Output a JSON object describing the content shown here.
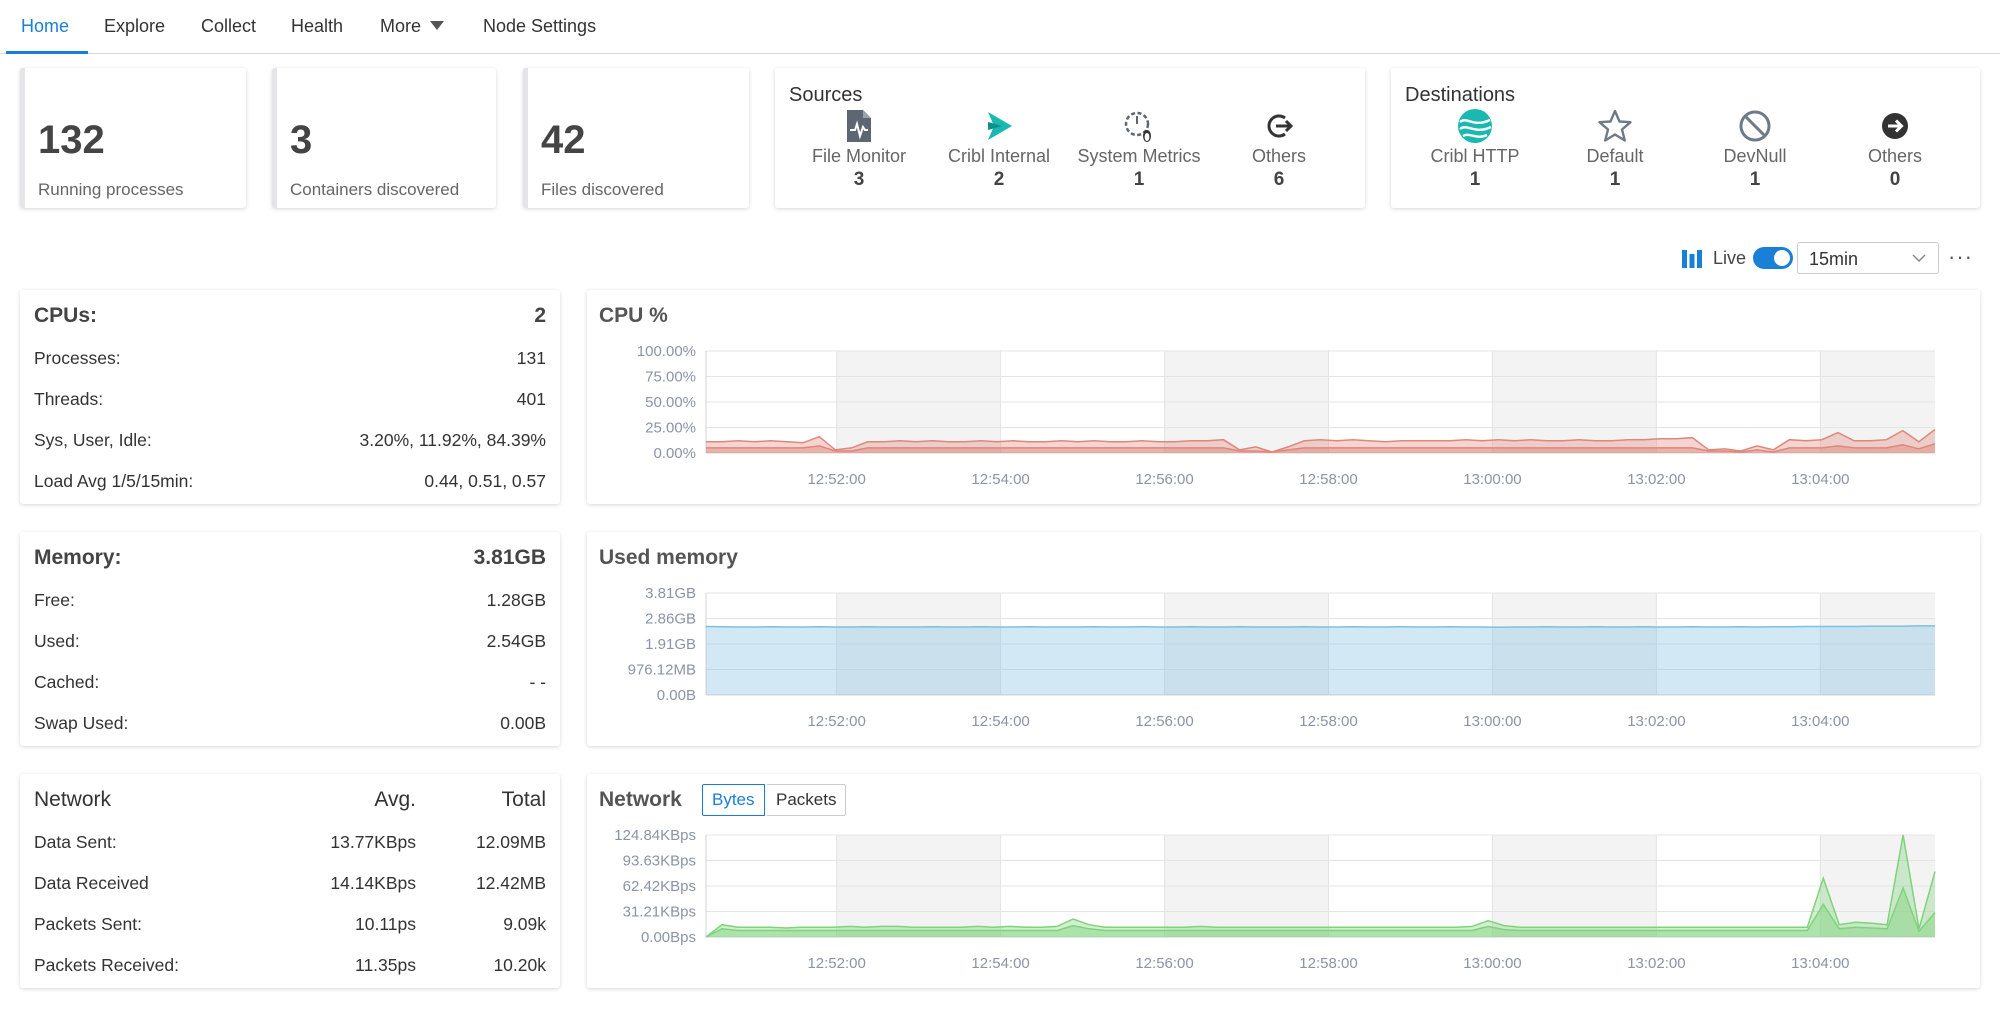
{
  "nav": {
    "tabs": [
      {
        "label": "Home",
        "active": true
      },
      {
        "label": "Explore"
      },
      {
        "label": "Collect"
      },
      {
        "label": "Health"
      },
      {
        "label": "More"
      },
      {
        "label": "Node Settings"
      }
    ]
  },
  "stats": [
    {
      "value": "132",
      "label": "Running processes"
    },
    {
      "value": "3",
      "label": "Containers discovered"
    },
    {
      "value": "42",
      "label": "Files discovered"
    }
  ],
  "sources": {
    "title": "Sources",
    "items": [
      {
        "label": "File Monitor",
        "count": "3",
        "icon": "file-monitor-icon"
      },
      {
        "label": "Cribl Internal",
        "count": "2",
        "icon": "cribl-internal-icon"
      },
      {
        "label": "System Metrics",
        "count": "1",
        "icon": "system-metrics-icon"
      },
      {
        "label": "Others",
        "count": "6",
        "icon": "others-source-icon"
      }
    ]
  },
  "destinations": {
    "title": "Destinations",
    "items": [
      {
        "label": "Cribl HTTP",
        "count": "1",
        "icon": "cribl-http-icon"
      },
      {
        "label": "Default",
        "count": "1",
        "icon": "star-icon"
      },
      {
        "label": "DevNull",
        "count": "1",
        "icon": "devnull-icon"
      },
      {
        "label": "Others",
        "count": "0",
        "icon": "others-destination-icon"
      }
    ]
  },
  "toolbar": {
    "live_label": "Live",
    "live_on": true,
    "range": "15min"
  },
  "cpu": {
    "title": "CPUs:",
    "value": "2",
    "rows": [
      {
        "label": "Processes:",
        "value": "131"
      },
      {
        "label": "Threads:",
        "value": "401"
      },
      {
        "label": "Sys, User, Idle:",
        "value": "3.20%, 11.92%, 84.39%"
      },
      {
        "label": "Load Avg 1/5/15min:",
        "value": "0.44, 0.51, 0.57"
      }
    ]
  },
  "memory": {
    "title": "Memory:",
    "value": "3.81GB",
    "rows": [
      {
        "label": "Free:",
        "value": "1.28GB"
      },
      {
        "label": "Used:",
        "value": "2.54GB"
      },
      {
        "label": "Cached:",
        "value": "- -"
      },
      {
        "label": "Swap Used:",
        "value": "0.00B"
      }
    ]
  },
  "network": {
    "title": "Network",
    "avg_header": "Avg.",
    "total_header": "Total",
    "rows": [
      {
        "label": "Data Sent:",
        "avg": "13.77KBps",
        "total": "12.09MB"
      },
      {
        "label": "Data Received",
        "avg": "14.14KBps",
        "total": "12.42MB"
      },
      {
        "label": "Packets Sent:",
        "avg": "10.11ps",
        "total": "9.09k"
      },
      {
        "label": "Packets Received:",
        "avg": "11.35ps",
        "total": "10.20k"
      }
    ]
  },
  "network_chart": {
    "title": "Network",
    "toggle": [
      "Bytes",
      "Packets"
    ],
    "selected": "Bytes"
  },
  "colors": {
    "accent": "#1a7fd6",
    "cpu": "#e0877a",
    "memory": "#7ec0e2",
    "network": "#7fd37a"
  },
  "chart_data": [
    {
      "type": "area",
      "title": "CPU %",
      "x_ticks": [
        "12:52:00",
        "12:54:00",
        "12:56:00",
        "12:58:00",
        "13:00:00",
        "13:02:00",
        "13:04:00"
      ],
      "y_ticks": [
        "100.00%",
        "75.00%",
        "50.00%",
        "25.00%",
        "0.00%"
      ],
      "ylim": [
        0,
        100
      ],
      "series": [
        {
          "values": [
            11,
            11,
            12,
            11,
            12,
            11,
            10,
            16,
            3,
            5,
            11,
            11,
            12,
            11,
            12,
            11,
            11,
            12,
            11,
            12,
            11,
            11,
            12,
            11,
            12,
            11,
            11,
            12,
            11,
            11,
            12,
            12,
            13,
            3,
            6,
            1,
            6,
            12,
            13,
            12,
            13,
            12,
            11,
            12,
            12,
            12,
            12,
            13,
            12,
            13,
            12,
            13,
            12,
            12,
            13,
            12,
            12,
            13,
            13,
            14,
            14,
            15,
            3,
            4,
            2,
            7,
            3,
            13,
            12,
            13,
            20,
            12,
            12,
            13,
            22,
            11,
            23
          ]
        },
        {
          "values": [
            5,
            5,
            5,
            5,
            5,
            5,
            5,
            7,
            2,
            2,
            5,
            5,
            5,
            5,
            5,
            5,
            5,
            5,
            5,
            5,
            5,
            5,
            5,
            5,
            5,
            5,
            5,
            5,
            5,
            5,
            5,
            5,
            5,
            2,
            2,
            1,
            3,
            5,
            5,
            5,
            5,
            5,
            5,
            5,
            5,
            5,
            5,
            5,
            5,
            5,
            5,
            5,
            5,
            5,
            5,
            5,
            5,
            5,
            5,
            5,
            5,
            5,
            2,
            2,
            1,
            3,
            1,
            5,
            5,
            5,
            7,
            5,
            5,
            5,
            8,
            4,
            9
          ]
        }
      ]
    },
    {
      "type": "area",
      "title": "Used memory",
      "x_ticks": [
        "12:52:00",
        "12:54:00",
        "12:56:00",
        "12:58:00",
        "13:00:00",
        "13:02:00",
        "13:04:00"
      ],
      "y_ticks": [
        "3.81GB",
        "2.86GB",
        "1.91GB",
        "976.12MB",
        "0.00B"
      ],
      "ylim": [
        0,
        3.81
      ],
      "series": [
        {
          "values": [
            2.56,
            2.55,
            2.54,
            2.54,
            2.55,
            2.54,
            2.54,
            2.55,
            2.54,
            2.54,
            2.55,
            2.54,
            2.54,
            2.54,
            2.55,
            2.54,
            2.54,
            2.55,
            2.54,
            2.54,
            2.55,
            2.54,
            2.54,
            2.54,
            2.55,
            2.54,
            2.54,
            2.55,
            2.54,
            2.54,
            2.55,
            2.54,
            2.54,
            2.55,
            2.54,
            2.54,
            2.54,
            2.55,
            2.54,
            2.54,
            2.55,
            2.54,
            2.54,
            2.55,
            2.54,
            2.54,
            2.55,
            2.54,
            2.54,
            2.53,
            2.54,
            2.54,
            2.55,
            2.54,
            2.54,
            2.55,
            2.54,
            2.54,
            2.55,
            2.54,
            2.54,
            2.55,
            2.54,
            2.54,
            2.55,
            2.54,
            2.55,
            2.55,
            2.56,
            2.56,
            2.56,
            2.56,
            2.57,
            2.57,
            2.57,
            2.58,
            2.58
          ]
        }
      ]
    },
    {
      "type": "area",
      "title": "Network",
      "x_ticks": [
        "12:52:00",
        "12:54:00",
        "12:56:00",
        "12:58:00",
        "13:00:00",
        "13:02:00",
        "13:04:00"
      ],
      "y_ticks": [
        "124.84KBps",
        "93.63KBps",
        "62.42KBps",
        "31.21KBps",
        "0.00Bps"
      ],
      "ylim": [
        0,
        124.84
      ],
      "series": [
        {
          "values": [
            0,
            15,
            12,
            12,
            12,
            11,
            12,
            12,
            12,
            13,
            12,
            13,
            13,
            12,
            12,
            12,
            12,
            13,
            12,
            13,
            12,
            12,
            13,
            22,
            15,
            12,
            12,
            12,
            12,
            12,
            12,
            13,
            12,
            12,
            12,
            12,
            12,
            12,
            12,
            12,
            12,
            12,
            12,
            12,
            12,
            12,
            12,
            12,
            13,
            20,
            14,
            12,
            12,
            12,
            12,
            12,
            12,
            12,
            12,
            12,
            12,
            12,
            12,
            12,
            12,
            12,
            12,
            12,
            12,
            12,
            72,
            15,
            18,
            17,
            15,
            125,
            10,
            80
          ]
        },
        {
          "values": [
            0,
            10,
            8,
            8,
            8,
            8,
            8,
            8,
            8,
            8,
            8,
            8,
            8,
            8,
            8,
            8,
            8,
            8,
            8,
            8,
            8,
            8,
            8,
            14,
            10,
            8,
            8,
            8,
            8,
            8,
            8,
            8,
            8,
            8,
            8,
            8,
            8,
            8,
            8,
            8,
            8,
            8,
            8,
            8,
            8,
            8,
            8,
            8,
            8,
            13,
            9,
            8,
            8,
            8,
            8,
            8,
            8,
            8,
            8,
            8,
            8,
            8,
            8,
            8,
            8,
            8,
            8,
            8,
            8,
            8,
            40,
            10,
            12,
            11,
            10,
            60,
            7,
            30
          ]
        }
      ]
    }
  ]
}
